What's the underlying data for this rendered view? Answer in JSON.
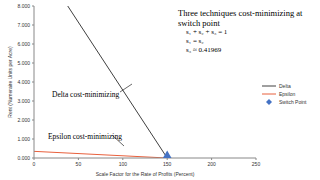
{
  "chart_data": {
    "type": "line",
    "title": "Three techniques cost-minimizing at switch point",
    "subtitle": [
      "s₁ + s₂ + s₃ = 1",
      "s₁ = s₂",
      "s₃ ≈ 0.41969"
    ],
    "annotations": [
      "Delta cost-minimizing",
      "Epsilon cost-minimizing"
    ],
    "x_label": "Scale Factor for the Rate of Profits (Percent)",
    "y_label": "Rent (Numeraire Units per Acre)",
    "xlim": [
      0,
      250
    ],
    "xticks": [
      0,
      50,
      100,
      150,
      200,
      250
    ],
    "ylim": [
      0,
      8
    ],
    "yticks": [
      {
        "value": 0,
        "label": "0.000"
      },
      {
        "value": 1,
        "label": "1.000"
      },
      {
        "value": 2,
        "label": "2.000"
      },
      {
        "value": 3,
        "label": "3.000"
      },
      {
        "value": 4,
        "label": "4.000"
      },
      {
        "value": 5,
        "label": "5.000"
      },
      {
        "value": 6,
        "label": "6.000"
      },
      {
        "value": 7,
        "label": "7.000"
      },
      {
        "value": 8,
        "label": "8.000"
      }
    ],
    "legend": "right",
    "series": [
      {
        "name": "Delta",
        "type": "line",
        "color": "#404040",
        "x": [
          38,
          150
        ],
        "values": [
          8,
          0
        ]
      },
      {
        "name": "Epsilon",
        "type": "line",
        "color": "#e8603c",
        "x": [
          0,
          150
        ],
        "values": [
          0.35,
          0
        ]
      },
      {
        "name": "Switch Point",
        "type": "scatter",
        "color": "#4472c4",
        "marker": "diamond",
        "x": [
          150
        ],
        "values": [
          0
        ]
      }
    ]
  }
}
